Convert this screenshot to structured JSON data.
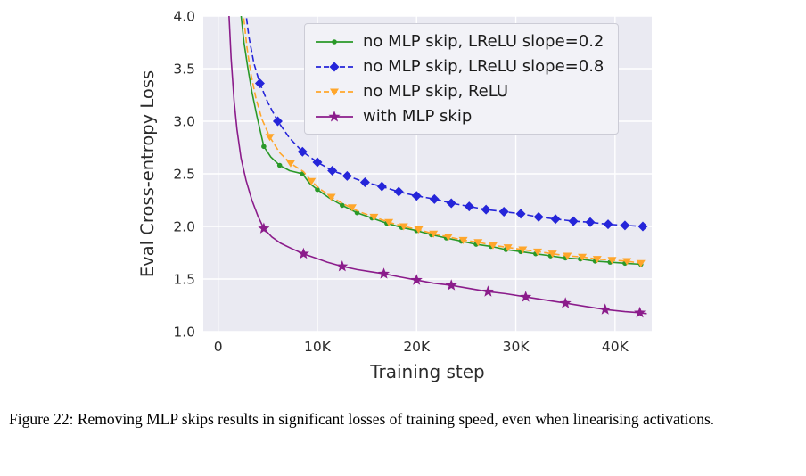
{
  "figure": {
    "caption_prefix": "Figure 22:",
    "caption_body": "Removing MLP skips results in significant losses of training speed, even when linearising activations."
  },
  "chart_data": {
    "type": "line",
    "title": "",
    "xlabel": "Training step",
    "ylabel": "Eval Cross-entropy Loss",
    "xlim": [
      -1500,
      43700
    ],
    "ylim": [
      1.0,
      4.0
    ],
    "grid": true,
    "plot_bg": "#eaeaf2",
    "grid_color": "#ffffff",
    "text_color": "#2b2b2b",
    "legend_position": "upper center",
    "x_ticks": [
      {
        "v": 0,
        "label": "0"
      },
      {
        "v": 10000,
        "label": "10K"
      },
      {
        "v": 20000,
        "label": "20K"
      },
      {
        "v": 30000,
        "label": "30K"
      },
      {
        "v": 40000,
        "label": "40K"
      }
    ],
    "y_ticks": [
      {
        "v": 1.0,
        "label": "1.0"
      },
      {
        "v": 1.5,
        "label": "1.5"
      },
      {
        "v": 2.0,
        "label": "2.0"
      },
      {
        "v": 2.5,
        "label": "2.5"
      },
      {
        "v": 3.0,
        "label": "3.0"
      },
      {
        "v": 3.5,
        "label": "3.5"
      },
      {
        "v": 4.0,
        "label": "4.0"
      }
    ],
    "series": [
      {
        "name": "no MLP skip, LReLU slope=0.2",
        "color": "#2a9928",
        "dash": "solid",
        "marker": "circle",
        "marker_size": 2.8,
        "line": [
          [
            1800,
            4.6
          ],
          [
            2200,
            4.1
          ],
          [
            2600,
            3.75
          ],
          [
            3000,
            3.5
          ],
          [
            3400,
            3.28
          ],
          [
            3900,
            3.05
          ],
          [
            4600,
            2.76
          ],
          [
            5300,
            2.66
          ],
          [
            6200,
            2.58
          ],
          [
            7200,
            2.53
          ],
          [
            8500,
            2.5
          ],
          [
            9200,
            2.41
          ],
          [
            10000,
            2.35
          ],
          [
            11200,
            2.27
          ],
          [
            12500,
            2.2
          ],
          [
            14000,
            2.13
          ],
          [
            15500,
            2.08
          ],
          [
            17000,
            2.03
          ],
          [
            18500,
            1.99
          ],
          [
            20000,
            1.96
          ],
          [
            21500,
            1.92
          ],
          [
            23000,
            1.89
          ],
          [
            24500,
            1.86
          ],
          [
            26000,
            1.83
          ],
          [
            27500,
            1.81
          ],
          [
            29000,
            1.78
          ],
          [
            30500,
            1.76
          ],
          [
            32000,
            1.74
          ],
          [
            33500,
            1.72
          ],
          [
            35000,
            1.7
          ],
          [
            36500,
            1.69
          ],
          [
            38000,
            1.67
          ],
          [
            39500,
            1.66
          ],
          [
            41000,
            1.65
          ],
          [
            42600,
            1.64
          ]
        ],
        "markers": [
          [
            4600,
            2.76
          ],
          [
            6200,
            2.58
          ],
          [
            8500,
            2.5
          ],
          [
            10000,
            2.35
          ],
          [
            12500,
            2.2
          ],
          [
            14000,
            2.13
          ],
          [
            15500,
            2.08
          ],
          [
            17000,
            2.03
          ],
          [
            18500,
            1.99
          ],
          [
            20000,
            1.96
          ],
          [
            21500,
            1.92
          ],
          [
            23000,
            1.89
          ],
          [
            24500,
            1.86
          ],
          [
            26000,
            1.83
          ],
          [
            27500,
            1.81
          ],
          [
            29000,
            1.78
          ],
          [
            30500,
            1.76
          ],
          [
            32000,
            1.74
          ],
          [
            33500,
            1.72
          ],
          [
            35000,
            1.7
          ],
          [
            36500,
            1.69
          ],
          [
            38000,
            1.67
          ],
          [
            39500,
            1.66
          ],
          [
            41000,
            1.65
          ],
          [
            42600,
            1.64
          ]
        ]
      },
      {
        "name": "no MLP skip, LReLU slope=0.8",
        "color": "#2525d9",
        "dash": "dashed",
        "marker": "diamond",
        "marker_size": 5.5,
        "line": [
          [
            2300,
            4.6
          ],
          [
            2700,
            4.1
          ],
          [
            3100,
            3.8
          ],
          [
            3600,
            3.55
          ],
          [
            4200,
            3.36
          ],
          [
            5000,
            3.18
          ],
          [
            6000,
            3.0
          ],
          [
            7200,
            2.84
          ],
          [
            8500,
            2.71
          ],
          [
            10000,
            2.61
          ],
          [
            11500,
            2.53
          ],
          [
            13000,
            2.48
          ],
          [
            14800,
            2.42
          ],
          [
            16500,
            2.38
          ],
          [
            18200,
            2.33
          ],
          [
            20000,
            2.29
          ],
          [
            21800,
            2.26
          ],
          [
            23500,
            2.22
          ],
          [
            25300,
            2.19
          ],
          [
            27000,
            2.16
          ],
          [
            28800,
            2.14
          ],
          [
            30500,
            2.12
          ],
          [
            32300,
            2.09
          ],
          [
            34000,
            2.07
          ],
          [
            35800,
            2.05
          ],
          [
            37500,
            2.04
          ],
          [
            39300,
            2.02
          ],
          [
            41000,
            2.01
          ],
          [
            42800,
            2.0
          ]
        ],
        "markers": [
          [
            4200,
            3.36
          ],
          [
            6000,
            3.0
          ],
          [
            8500,
            2.71
          ],
          [
            10000,
            2.61
          ],
          [
            11500,
            2.53
          ],
          [
            13000,
            2.48
          ],
          [
            14800,
            2.42
          ],
          [
            16500,
            2.38
          ],
          [
            18200,
            2.33
          ],
          [
            20000,
            2.29
          ],
          [
            21800,
            2.26
          ],
          [
            23500,
            2.22
          ],
          [
            25300,
            2.19
          ],
          [
            27000,
            2.16
          ],
          [
            28800,
            2.14
          ],
          [
            30500,
            2.12
          ],
          [
            32300,
            2.09
          ],
          [
            34000,
            2.07
          ],
          [
            35800,
            2.05
          ],
          [
            37500,
            2.04
          ],
          [
            39300,
            2.02
          ],
          [
            41000,
            2.01
          ],
          [
            42800,
            2.0
          ]
        ]
      },
      {
        "name": "no MLP skip, ReLU",
        "color": "#ffa62b",
        "dash": "dashed",
        "marker": "triangle-down",
        "marker_size": 5,
        "line": [
          [
            2100,
            4.6
          ],
          [
            2500,
            4.05
          ],
          [
            2900,
            3.7
          ],
          [
            3300,
            3.45
          ],
          [
            3800,
            3.22
          ],
          [
            4400,
            3.02
          ],
          [
            5200,
            2.85
          ],
          [
            6200,
            2.7
          ],
          [
            7300,
            2.6
          ],
          [
            8600,
            2.52
          ],
          [
            9400,
            2.43
          ],
          [
            10200,
            2.36
          ],
          [
            11400,
            2.28
          ],
          [
            12700,
            2.21
          ],
          [
            14200,
            2.14
          ],
          [
            15700,
            2.09
          ],
          [
            17200,
            2.04
          ],
          [
            18700,
            2.0
          ],
          [
            20200,
            1.97
          ],
          [
            21700,
            1.93
          ],
          [
            23200,
            1.9
          ],
          [
            24700,
            1.87
          ],
          [
            26200,
            1.85
          ],
          [
            27700,
            1.82
          ],
          [
            29200,
            1.8
          ],
          [
            30700,
            1.78
          ],
          [
            32200,
            1.76
          ],
          [
            33700,
            1.74
          ],
          [
            35200,
            1.72
          ],
          [
            36700,
            1.71
          ],
          [
            38200,
            1.69
          ],
          [
            39700,
            1.68
          ],
          [
            41200,
            1.67
          ],
          [
            42600,
            1.65
          ]
        ],
        "markers": [
          [
            5200,
            2.85
          ],
          [
            7300,
            2.6
          ],
          [
            9400,
            2.43
          ],
          [
            11400,
            2.28
          ],
          [
            13500,
            2.18
          ],
          [
            15700,
            2.09
          ],
          [
            17200,
            2.04
          ],
          [
            18700,
            2.0
          ],
          [
            20200,
            1.97
          ],
          [
            21700,
            1.93
          ],
          [
            23200,
            1.9
          ],
          [
            24700,
            1.87
          ],
          [
            26200,
            1.85
          ],
          [
            27700,
            1.82
          ],
          [
            29200,
            1.8
          ],
          [
            30700,
            1.78
          ],
          [
            32200,
            1.76
          ],
          [
            33700,
            1.74
          ],
          [
            35200,
            1.72
          ],
          [
            36700,
            1.71
          ],
          [
            38200,
            1.69
          ],
          [
            39700,
            1.68
          ],
          [
            41200,
            1.67
          ],
          [
            42600,
            1.65
          ]
        ]
      },
      {
        "name": "with MLP skip",
        "color": "#8b1c8b",
        "dash": "solid",
        "marker": "star",
        "marker_size": 5.5,
        "line": [
          [
            900,
            4.6
          ],
          [
            1100,
            4.0
          ],
          [
            1300,
            3.6
          ],
          [
            1600,
            3.2
          ],
          [
            1900,
            2.92
          ],
          [
            2300,
            2.65
          ],
          [
            2800,
            2.44
          ],
          [
            3400,
            2.25
          ],
          [
            4000,
            2.1
          ],
          [
            4600,
            1.98
          ],
          [
            5400,
            1.9
          ],
          [
            6300,
            1.84
          ],
          [
            7400,
            1.79
          ],
          [
            8600,
            1.74
          ],
          [
            9800,
            1.7
          ],
          [
            11000,
            1.66
          ],
          [
            12500,
            1.62
          ],
          [
            14000,
            1.59
          ],
          [
            15300,
            1.57
          ],
          [
            16700,
            1.55
          ],
          [
            18300,
            1.52
          ],
          [
            20000,
            1.49
          ],
          [
            21700,
            1.46
          ],
          [
            23500,
            1.44
          ],
          [
            25300,
            1.41
          ],
          [
            27200,
            1.38
          ],
          [
            29000,
            1.36
          ],
          [
            31000,
            1.33
          ],
          [
            33000,
            1.3
          ],
          [
            35000,
            1.27
          ],
          [
            37000,
            1.24
          ],
          [
            39000,
            1.21
          ],
          [
            41000,
            1.19
          ],
          [
            42500,
            1.18
          ],
          [
            43200,
            1.17
          ]
        ],
        "markers": [
          [
            4600,
            1.98
          ],
          [
            8600,
            1.74
          ],
          [
            12500,
            1.62
          ],
          [
            16700,
            1.55
          ],
          [
            20000,
            1.49
          ],
          [
            23500,
            1.44
          ],
          [
            27200,
            1.38
          ],
          [
            31000,
            1.33
          ],
          [
            35000,
            1.27
          ],
          [
            39000,
            1.21
          ],
          [
            42500,
            1.18
          ]
        ]
      }
    ]
  }
}
